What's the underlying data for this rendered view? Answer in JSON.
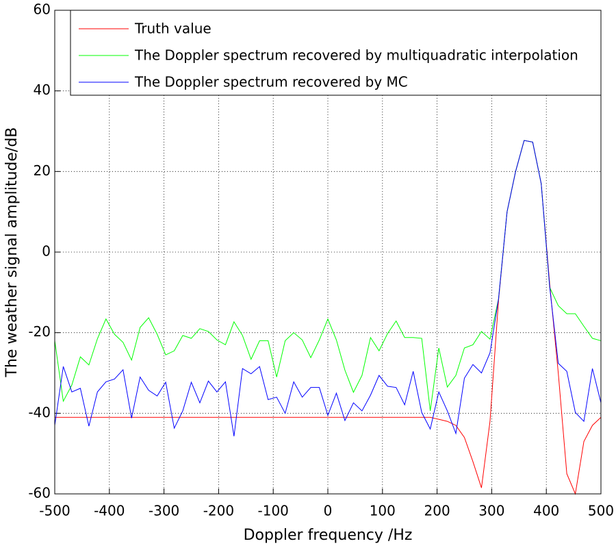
{
  "chart_data": {
    "type": "line",
    "xlabel": "Doppler frequency /Hz",
    "ylabel": "The weather signal amplitude/dB",
    "xlim": [
      -500,
      500
    ],
    "ylim": [
      -60,
      60
    ],
    "xticks": [
      -500,
      -400,
      -300,
      -200,
      -100,
      0,
      100,
      200,
      300,
      400,
      500
    ],
    "yticks": [
      -60,
      -40,
      -20,
      0,
      20,
      40,
      60
    ],
    "grid": true,
    "legend": "top-right",
    "x": [
      -500,
      -484.375,
      -468.75,
      -453.125,
      -437.5,
      -421.875,
      -406.25,
      -390.625,
      -375,
      -359.375,
      -343.75,
      -328.125,
      -312.5,
      -296.875,
      -281.25,
      -265.625,
      -250,
      -234.375,
      -218.75,
      -203.125,
      -187.5,
      -171.875,
      -156.25,
      -140.625,
      -125,
      -109.375,
      -93.75,
      -78.125,
      -62.5,
      -46.875,
      -31.25,
      -15.625,
      0,
      15.625,
      31.25,
      46.875,
      62.5,
      78.125,
      93.75,
      109.375,
      125,
      140.625,
      156.25,
      171.875,
      187.5,
      203.125,
      218.75,
      234.375,
      250,
      265.625,
      281.25,
      296.875,
      312.5,
      328.125,
      343.75,
      359.375,
      375,
      390.625,
      406.25,
      421.875,
      437.5,
      453.125,
      468.75,
      484.375,
      500
    ],
    "series": [
      {
        "name": "Truth value",
        "color": "#ff0000",
        "values": [
          -41,
          -41,
          -41,
          -41,
          -41,
          -41,
          -41,
          -41,
          -41,
          -41,
          -41,
          -41,
          -41,
          -41,
          -41,
          -41,
          -41,
          -41,
          -41,
          -41,
          -41,
          -41,
          -41,
          -41,
          -41,
          -41,
          -41,
          -41,
          -41,
          -41,
          -41,
          -41,
          -41,
          -41,
          -41,
          -41,
          -41,
          -41,
          -41,
          -41,
          -41,
          -41,
          -41,
          -41,
          -41,
          -41.5,
          -42,
          -43,
          -46,
          -52,
          -58.5,
          -42,
          -12,
          10,
          20,
          27.7,
          27.3,
          17,
          -8,
          -30,
          -55,
          -60,
          -47,
          -43,
          -41
        ]
      },
      {
        "name": "The Doppler spectrum recovered by multiquadratic interpolation",
        "color": "#00ff00",
        "values": [
          -22,
          -37,
          -33,
          -26,
          -28,
          -21.5,
          -16.6,
          -20.4,
          -22.4,
          -26.8,
          -18.7,
          -16.3,
          -20.4,
          -25.5,
          -24.5,
          -20.7,
          -21.4,
          -19,
          -19.7,
          -21.8,
          -23,
          -17.3,
          -20.7,
          -26.6,
          -22,
          -22,
          -31,
          -22,
          -20,
          -21.8,
          -26.2,
          -21.8,
          -16.6,
          -21.8,
          -29.3,
          -34.8,
          -30.6,
          -21.2,
          -24.5,
          -20.2,
          -17.1,
          -21.2,
          -21.2,
          -21.4,
          -39.4,
          -23.8,
          -33.5,
          -30.6,
          -23.8,
          -23,
          -19.7,
          -21.6,
          -11.6,
          10,
          20,
          27.7,
          27.3,
          17,
          -8.8,
          -13.3,
          -15.3,
          -15.3,
          -18.4,
          -21.4,
          -22
        ]
      },
      {
        "name": "The Doppler spectrum recovered by MC",
        "color": "#0000ff",
        "values": [
          -43,
          -28.4,
          -34.7,
          -33.8,
          -43.2,
          -34.7,
          -32.2,
          -31.5,
          -29.2,
          -41.2,
          -31,
          -34.3,
          -35.7,
          -32.3,
          -43.7,
          -39.4,
          -32.3,
          -37.4,
          -32,
          -34.7,
          -32.2,
          -45.7,
          -28.9,
          -30.2,
          -28.4,
          -36.6,
          -36,
          -40,
          -32.2,
          -36,
          -33.6,
          -33.6,
          -40.5,
          -35,
          -41.8,
          -37.4,
          -39.4,
          -35.5,
          -30.6,
          -33.3,
          -33.6,
          -37.9,
          -29.6,
          -39.8,
          -43.9,
          -34.7,
          -39.4,
          -45,
          -31.3,
          -27.9,
          -30,
          -25,
          -11.6,
          10,
          20,
          27.7,
          27.3,
          17,
          -8.8,
          -27.6,
          -29.6,
          -39.8,
          -42,
          -28.9,
          -37.4
        ]
      }
    ]
  }
}
